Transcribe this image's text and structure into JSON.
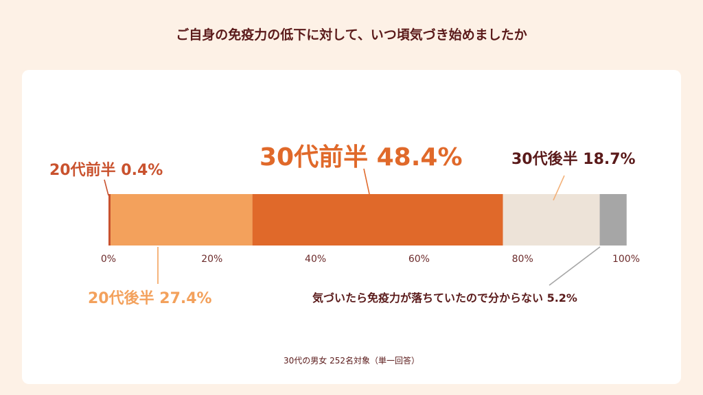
{
  "title": "ご自身の免疫力の低下に対して、いつ頃気づき始めましたか",
  "note": "30代の男女 252名対象（単一回答）",
  "chart_data": {
    "type": "bar",
    "orientation": "horizontal-stacked-100",
    "xlim": [
      0,
      100
    ],
    "ticks": [
      "0%",
      "20%",
      "40%",
      "60%",
      "80%",
      "100%"
    ],
    "tick_values": [
      0,
      20,
      40,
      60,
      80,
      100
    ],
    "segments": [
      {
        "label": "20代前半 0.4%",
        "value": 0.4,
        "color": "#c9522e"
      },
      {
        "label": "20代後半 27.4%",
        "value": 27.4,
        "color": "#f3a15c"
      },
      {
        "label": "30代前半 48.4%",
        "value": 48.4,
        "color": "#e0692a"
      },
      {
        "label": "30代後半 18.7%",
        "value": 18.7,
        "color": "#ede3d8"
      },
      {
        "label": "気づいたら免疫力が落ちていたので分からない 5.2%",
        "value": 5.2,
        "color": "#a6a6a6"
      }
    ]
  }
}
